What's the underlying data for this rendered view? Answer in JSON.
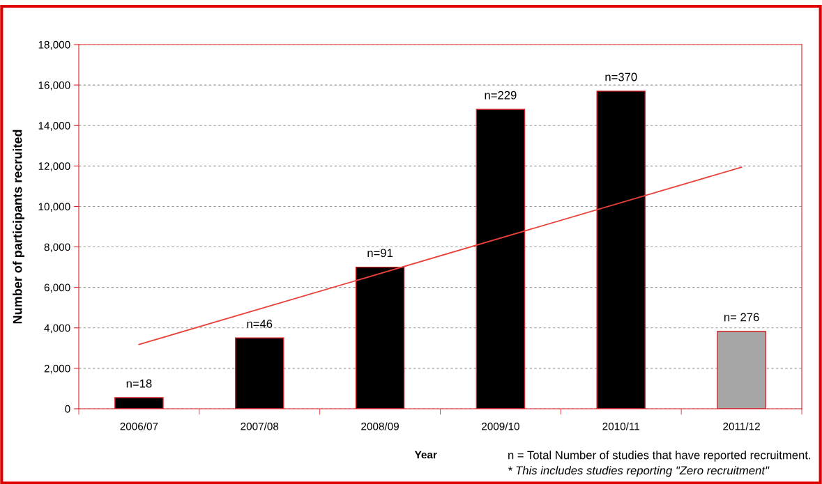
{
  "chart_data": {
    "type": "bar",
    "xlabel": "Year",
    "ylabel": "Number of participants recruited",
    "categories": [
      "2006/07",
      "2007/08",
      "2008/09",
      "2009/10",
      "2010/11",
      "2011/12"
    ],
    "series": [
      {
        "values": [
          550,
          3500,
          7000,
          14800,
          15700,
          3830
        ],
        "colors": [
          "#000000",
          "#000000",
          "#000000",
          "#000000",
          "#000000",
          "#a6a6a6"
        ]
      },
      {
        "type": "line",
        "x": [
          "2006/07",
          "2011/12"
        ],
        "values": [
          3180,
          11940
        ],
        "color": "#e8413a"
      }
    ],
    "ylim": [
      0,
      18000
    ],
    "yticks": [
      {
        "value": 0,
        "label": "0"
      },
      {
        "value": 2000,
        "label": "2,000"
      },
      {
        "value": 4000,
        "label": "4,000"
      },
      {
        "value": 6000,
        "label": "6,000"
      },
      {
        "value": 8000,
        "label": "8,000"
      },
      {
        "value": 10000,
        "label": "10,000"
      },
      {
        "value": 12000,
        "label": "12,000"
      },
      {
        "value": 14000,
        "label": "14,000"
      },
      {
        "value": 16000,
        "label": "16,000"
      },
      {
        "value": 18000,
        "label": "18,000"
      }
    ],
    "grid": "y",
    "legend": false,
    "annotations": [
      {
        "text": "n=18",
        "x": "2006/07",
        "y": 550
      },
      {
        "text": "n=46",
        "x": "2007/08",
        "y": 3500
      },
      {
        "text": "n=91",
        "x": "2008/09",
        "y": 7000
      },
      {
        "text": "n=229",
        "x": "2009/10",
        "y": 14800
      },
      {
        "text": "n=370",
        "x": "2010/11",
        "y": 15700
      },
      {
        "text": "n= 276",
        "x": "2011/12",
        "y": 3830
      },
      "n = Total Number of studies that have reported recruitment.",
      "* This includes studies reporting \"Zero recruitment\""
    ]
  }
}
